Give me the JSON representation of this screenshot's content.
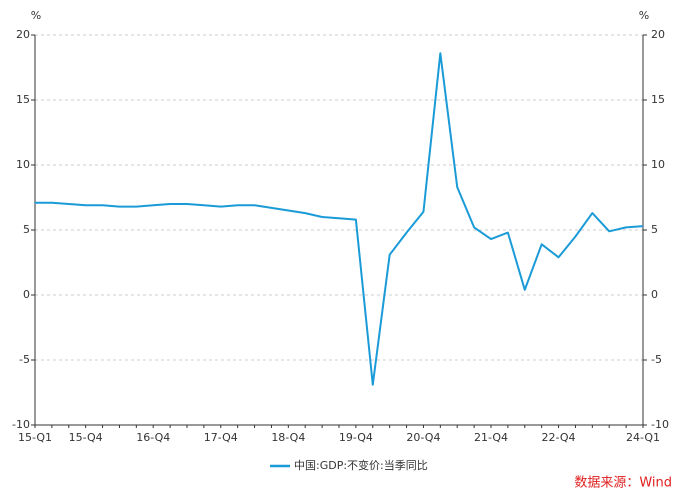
{
  "chart_data": {
    "type": "line",
    "y_label": "%",
    "y2_label": "%",
    "categories": [
      "15-Q1",
      null,
      null,
      "15-Q4",
      null,
      null,
      null,
      "16-Q4",
      null,
      null,
      null,
      "17-Q4",
      null,
      null,
      null,
      "18-Q4",
      null,
      null,
      null,
      "19-Q4",
      null,
      null,
      null,
      "20-Q4",
      null,
      null,
      null,
      "21-Q4",
      null,
      null,
      null,
      "22-Q4",
      null,
      null,
      null,
      null,
      "24-Q1"
    ],
    "series": [
      {
        "name": "中国:GDP:不变价:当季同比",
        "color": "#1a9bd7",
        "values": [
          7.1,
          7.1,
          7.0,
          6.9,
          6.9,
          6.8,
          6.8,
          6.9,
          7.0,
          7.0,
          6.9,
          6.8,
          6.9,
          6.9,
          6.7,
          6.5,
          6.3,
          6.0,
          5.9,
          5.8,
          -6.9,
          3.1,
          4.8,
          6.4,
          18.6,
          8.3,
          5.2,
          4.3,
          4.8,
          0.4,
          3.9,
          2.9,
          4.5,
          6.3,
          4.9,
          5.2,
          5.3
        ]
      }
    ],
    "ylim": [
      -10,
      20
    ],
    "yticks": [
      -10,
      -5,
      0,
      5,
      10,
      15,
      20
    ],
    "y2lim": [
      -10,
      20
    ],
    "y2ticks": [
      -10,
      -5,
      0,
      5,
      10,
      15,
      20
    ],
    "grid": true,
    "source": "数据来源：Wind"
  }
}
